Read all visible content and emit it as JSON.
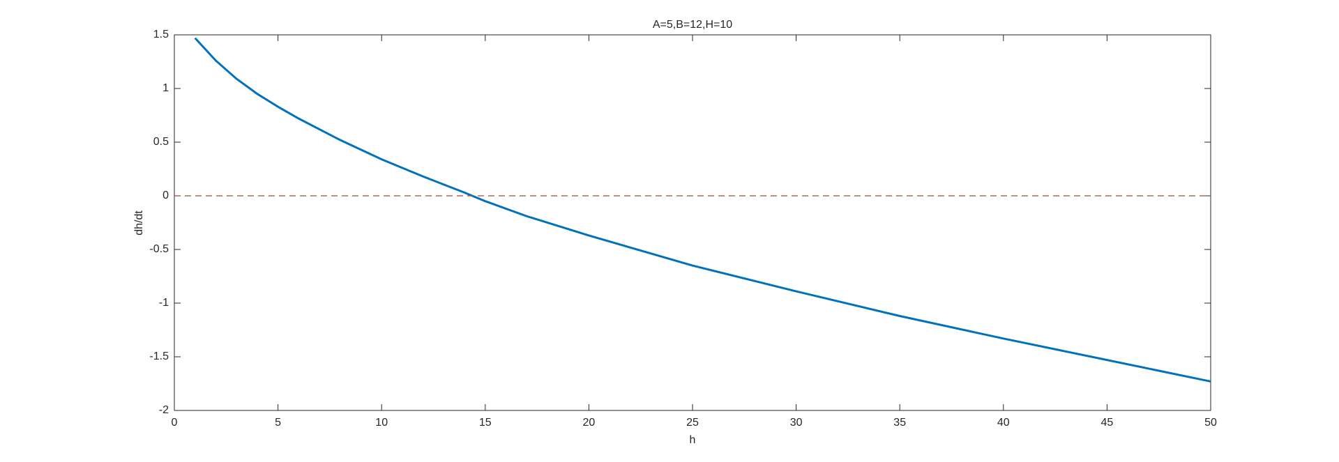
{
  "chart_data": {
    "type": "line",
    "title": "A=5,B=12,H=10",
    "xlabel": "h",
    "ylabel": "dh/dt",
    "xlim": [
      0,
      50
    ],
    "xticks": [
      0,
      5,
      10,
      15,
      20,
      25,
      30,
      35,
      40,
      45,
      50
    ],
    "ylim": [
      -2,
      1.5
    ],
    "yticks": [
      -2,
      -1.5,
      -1,
      -0.5,
      0,
      0.5,
      1,
      1.5
    ],
    "series": [
      {
        "color": "#0072bd",
        "dash": false,
        "x": [
          1,
          2,
          3,
          4,
          5,
          6,
          7,
          8,
          9,
          10,
          12,
          14,
          15,
          17,
          20,
          25,
          30,
          35,
          40,
          45,
          50
        ],
        "values": [
          1.47,
          1.26,
          1.09,
          0.95,
          0.83,
          0.72,
          0.62,
          0.52,
          0.43,
          0.34,
          0.18,
          0.03,
          -0.05,
          -0.19,
          -0.37,
          -0.65,
          -0.89,
          -1.12,
          -1.33,
          -1.53,
          -1.73
        ]
      },
      {
        "color": "#a2473a",
        "dash": true,
        "x": [
          0,
          50
        ],
        "values": [
          0,
          0
        ]
      }
    ]
  }
}
